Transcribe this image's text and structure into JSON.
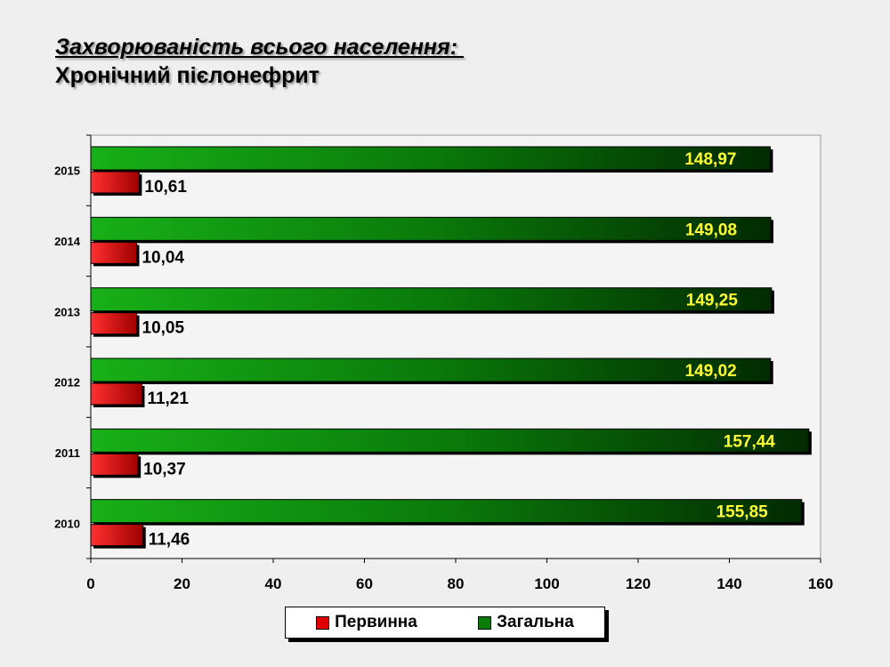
{
  "title": "Захворюваність всього населення: ",
  "subtitle": "Хронічний пієлонефрит",
  "colors": {
    "primary_series": "#e00000",
    "total_series": "#0a7a0a",
    "total_label": "#ffff33",
    "primary_label": "#000000"
  },
  "chart_data": {
    "type": "bar",
    "orientation": "horizontal",
    "categories": [
      "2015",
      "2014",
      "2013",
      "2012",
      "2011",
      "2010"
    ],
    "series": [
      {
        "name": "Первинна",
        "values": [
          10.61,
          10.04,
          10.05,
          11.21,
          10.37,
          11.46
        ],
        "labels": [
          "10,61",
          "10,04",
          "10,05",
          "11,21",
          "10,37",
          "11,46"
        ]
      },
      {
        "name": "Загальна",
        "values": [
          148.97,
          149.08,
          149.25,
          149.02,
          157.44,
          155.85
        ],
        "labels": [
          "148,97",
          "149,08",
          "149,25",
          "149,02",
          "157,44",
          "155,85"
        ]
      }
    ],
    "xlim": [
      0,
      160
    ],
    "xticks": [
      "0",
      "20",
      "40",
      "60",
      "80",
      "100",
      "120",
      "140",
      "160"
    ],
    "grid": false,
    "legend_position": "bottom"
  }
}
